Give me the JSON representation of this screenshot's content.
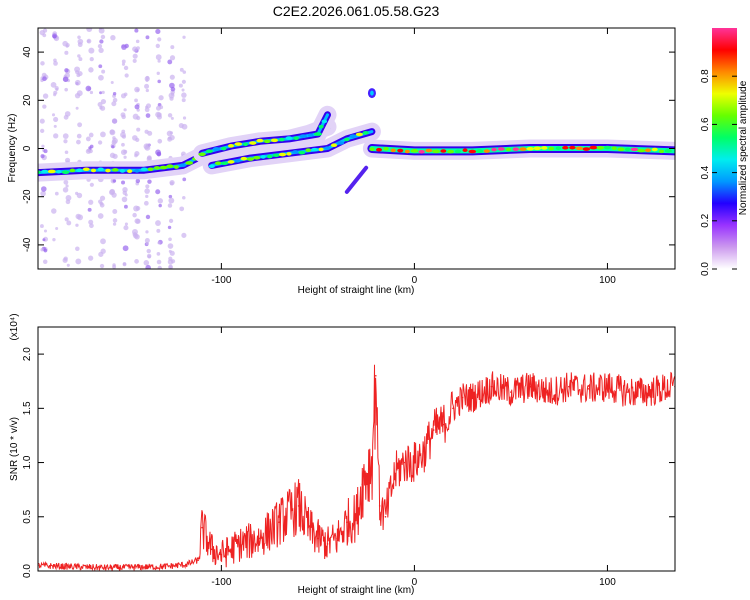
{
  "figure": {
    "title": "C2E2.2026.061.05.58.G23"
  },
  "chart_data": [
    {
      "type": "heatmap",
      "name": "spectrogram",
      "xlabel": "Height of straight line (km)",
      "ylabel": "Frequency (Hz)",
      "xlim": [
        -195,
        135
      ],
      "ylim": [
        -50,
        50
      ],
      "xticks": [
        -100,
        0,
        100
      ],
      "yticks": [
        -40,
        -20,
        0,
        20,
        40
      ],
      "grid": false,
      "colorbar": {
        "label": "Normalized spectral amplitude",
        "range": [
          0,
          1
        ],
        "ticks": [
          0.0,
          0.2,
          0.4,
          0.6,
          0.8
        ],
        "colormap": [
          "#ffffff",
          "#cc99ee",
          "#9933ff",
          "#2200ff",
          "#0099ff",
          "#00eeee",
          "#00ff66",
          "#66ff00",
          "#eeff00",
          "#ff8800",
          "#ff0000",
          "#ff3399"
        ]
      },
      "ridges": [
        {
          "name": "main-band",
          "points": [
            [
              -195,
              -10
            ],
            [
              -170,
              -9
            ],
            [
              -140,
              -9
            ],
            [
              -120,
              -7
            ],
            [
              -110,
              -3
            ],
            [
              -90,
              0
            ],
            [
              -70,
              3
            ],
            [
              -55,
              6
            ],
            [
              -45,
              9
            ]
          ]
        },
        {
          "name": "upper-branch",
          "points": [
            [
              -110,
              -2
            ],
            [
              -95,
              1
            ],
            [
              -80,
              3
            ],
            [
              -65,
              4
            ],
            [
              -50,
              6
            ],
            [
              -45,
              14
            ]
          ]
        },
        {
          "name": "lower-branch",
          "points": [
            [
              -105,
              -7
            ],
            [
              -85,
              -4
            ],
            [
              -65,
              -2
            ],
            [
              -45,
              0
            ],
            [
              -35,
              4
            ],
            [
              -22,
              7
            ]
          ]
        },
        {
          "name": "zero-line",
          "points": [
            [
              -22,
              0
            ],
            [
              0,
              -1
            ],
            [
              30,
              -1
            ],
            [
              60,
              0
            ],
            [
              100,
              0
            ],
            [
              135,
              -1
            ]
          ]
        }
      ],
      "features": [
        {
          "name": "streak",
          "points": [
            [
              -35,
              -18
            ],
            [
              -25,
              -8
            ]
          ]
        },
        {
          "name": "blob",
          "points": [
            [
              -22,
              23
            ]
          ]
        }
      ],
      "noise_region": {
        "x": [
          -195,
          -120
        ],
        "y": [
          -50,
          50
        ]
      }
    },
    {
      "type": "line",
      "name": "snr",
      "xlabel": "Height of straight line (km)",
      "ylabel": "SNR (10 * v/v)",
      "y_multiplier": "(x10⁴)",
      "xlim": [
        -195,
        135
      ],
      "ylim": [
        0,
        2.25
      ],
      "xticks": [
        -100,
        0,
        100
      ],
      "yticks": [
        0.0,
        0.5,
        1.0,
        1.5,
        2.0
      ],
      "color": "#ee2222",
      "grid": false,
      "x": [
        -195,
        -160,
        -130,
        -118,
        -112,
        -110,
        -105,
        -100,
        -90,
        -80,
        -70,
        -60,
        -55,
        -50,
        -45,
        -40,
        -35,
        -30,
        -27,
        -25,
        -22,
        -20,
        -18,
        -15,
        -10,
        -5,
        0,
        5,
        10,
        15,
        20,
        25,
        30,
        40,
        50,
        60,
        70,
        80,
        90,
        100,
        110,
        120,
        135
      ],
      "y": [
        0.05,
        0.03,
        0.04,
        0.06,
        0.1,
        0.4,
        0.2,
        0.15,
        0.25,
        0.3,
        0.45,
        0.6,
        0.4,
        0.3,
        0.25,
        0.3,
        0.45,
        0.5,
        0.8,
        0.9,
        1.0,
        1.8,
        0.6,
        0.5,
        0.9,
        1.0,
        1.0,
        1.1,
        1.3,
        1.35,
        1.5,
        1.6,
        1.6,
        1.7,
        1.65,
        1.7,
        1.65,
        1.7,
        1.68,
        1.7,
        1.65,
        1.65,
        1.7
      ]
    }
  ]
}
